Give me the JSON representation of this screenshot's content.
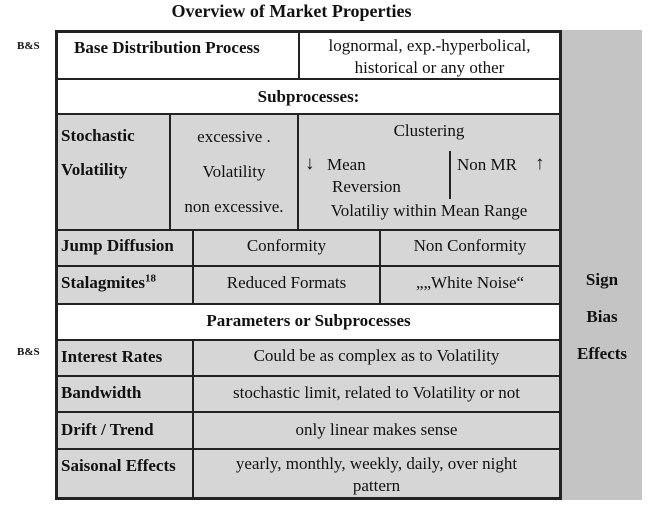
{
  "title": "Overview of Market Properties",
  "side_labels": [
    "B&S",
    "B&S"
  ],
  "base": {
    "label": "Base Distribution Process",
    "value_line1": "lognormal, exp.-hyperbolical,",
    "value_line2": "historical or any other"
  },
  "subprocesses_header": "Subprocesses:",
  "stochastic": {
    "label_line1": "Stochastic",
    "label_line2": "Volatility",
    "mid_line1": "excessive .",
    "mid_line2": "Volatility",
    "mid_line3": "non excessive.",
    "clustering": "Clustering",
    "mean_line1": "Mean",
    "mean_line2": "Reversion",
    "non_mr": "Non MR",
    "within": "Volatiliy within Mean Range",
    "down_arrow": "↓",
    "up_arrow": "↑"
  },
  "jump": {
    "label": "Jump Diffusion",
    "conformity": "Conformity",
    "non_conformity": "Non Conformity"
  },
  "stalagmites": {
    "label": "Stalagmites",
    "footnote": "18",
    "reduced": "Reduced Formats",
    "white_noise": "„„White Noise“"
  },
  "params_header": "Parameters or Subprocesses",
  "interest": {
    "label": "Interest Rates",
    "value": "Could be as complex as to Volatility"
  },
  "bandwidth": {
    "label": "Bandwidth",
    "value": "stochastic limit, related to Volatility or not"
  },
  "drift": {
    "label": "Drift / Trend",
    "value": "only linear makes sense"
  },
  "saisonal": {
    "label": "Saisonal Effects",
    "value_line1": "yearly, monthly, weekly, daily, over night",
    "value_line2": "pattern"
  },
  "sign_column": [
    "Sign",
    "Bias",
    "Effects"
  ]
}
